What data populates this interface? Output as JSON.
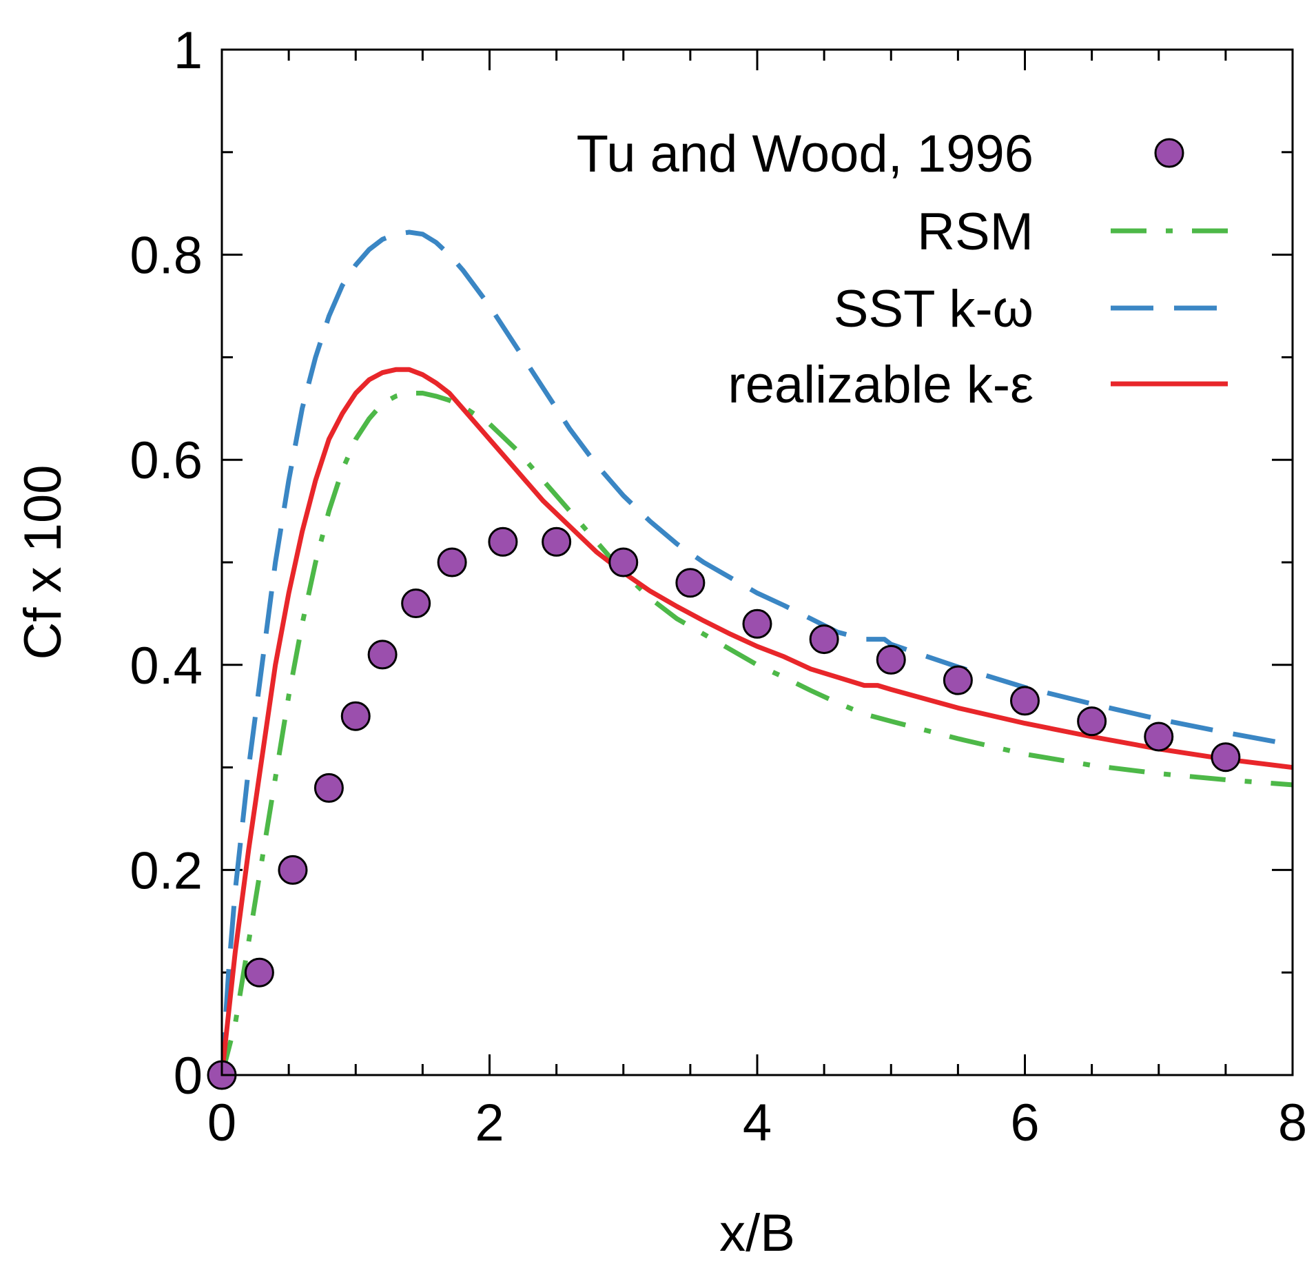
{
  "chart_data": {
    "type": "line",
    "title": "",
    "xlabel": "x/B",
    "ylabel": "Cf x 100",
    "xlim": [
      0,
      8
    ],
    "ylim": [
      0,
      1
    ],
    "xticks": [
      0,
      2,
      4,
      6,
      8
    ],
    "yticks": [
      0,
      0.2,
      0.4,
      0.6,
      0.8,
      1
    ],
    "xtick_labels": [
      "0",
      "2",
      "4",
      "6",
      "8"
    ],
    "ytick_labels": [
      "0",
      "0.2",
      "0.4",
      "0.6",
      "0.8",
      "1"
    ],
    "legend_position": "top-right",
    "series": [
      {
        "name": "Tu and Wood, 1996",
        "style": "markers",
        "color": "#9b4fad",
        "x": [
          0,
          0.28,
          0.53,
          0.8,
          1.0,
          1.2,
          1.45,
          1.72,
          2.1,
          2.5,
          3.0,
          3.5,
          4.0,
          4.5,
          5.0,
          5.5,
          6.0,
          6.5,
          7.0,
          7.5
        ],
        "y": [
          0,
          0.1,
          0.2,
          0.28,
          0.35,
          0.41,
          0.46,
          0.5,
          0.52,
          0.52,
          0.5,
          0.48,
          0.44,
          0.425,
          0.405,
          0.385,
          0.365,
          0.345,
          0.33,
          0.31
        ]
      },
      {
        "name": "RSM",
        "style": "dash-dot",
        "color": "#4db848",
        "x": [
          0,
          0.1,
          0.2,
          0.3,
          0.4,
          0.5,
          0.6,
          0.7,
          0.8,
          0.9,
          1.0,
          1.1,
          1.2,
          1.3,
          1.4,
          1.5,
          1.6,
          1.7,
          1.8,
          2.0,
          2.2,
          2.4,
          2.6,
          2.8,
          3.0,
          3.2,
          3.4,
          3.6,
          3.8,
          4.0,
          4.2,
          4.4,
          4.6,
          4.8,
          5.0,
          5.5,
          6.0,
          6.5,
          7.0,
          7.5,
          8.0
        ],
        "y": [
          0,
          0.05,
          0.13,
          0.21,
          0.29,
          0.37,
          0.44,
          0.5,
          0.55,
          0.59,
          0.62,
          0.64,
          0.655,
          0.662,
          0.665,
          0.665,
          0.662,
          0.658,
          0.652,
          0.635,
          0.61,
          0.58,
          0.55,
          0.52,
          0.49,
          0.465,
          0.445,
          0.43,
          0.415,
          0.4,
          0.388,
          0.375,
          0.363,
          0.352,
          0.345,
          0.328,
          0.313,
          0.302,
          0.294,
          0.288,
          0.283
        ]
      },
      {
        "name": "SST k-ω",
        "style": "dashed",
        "color": "#3a86c4",
        "x": [
          0,
          0.05,
          0.1,
          0.2,
          0.3,
          0.4,
          0.5,
          0.6,
          0.7,
          0.8,
          0.9,
          1.0,
          1.1,
          1.2,
          1.3,
          1.4,
          1.5,
          1.6,
          1.7,
          1.8,
          2.0,
          2.2,
          2.4,
          2.6,
          2.8,
          3.0,
          3.2,
          3.4,
          3.6,
          3.8,
          4.0,
          4.2,
          4.4,
          4.6,
          4.8,
          4.95,
          5.0,
          5.5,
          6.0,
          6.5,
          7.0,
          7.5,
          8.0
        ],
        "y": [
          0,
          0.1,
          0.18,
          0.3,
          0.4,
          0.5,
          0.58,
          0.65,
          0.7,
          0.74,
          0.77,
          0.79,
          0.805,
          0.815,
          0.82,
          0.822,
          0.82,
          0.812,
          0.8,
          0.785,
          0.75,
          0.71,
          0.67,
          0.63,
          0.595,
          0.565,
          0.54,
          0.518,
          0.5,
          0.485,
          0.47,
          0.458,
          0.445,
          0.432,
          0.425,
          0.425,
          0.42,
          0.398,
          0.378,
          0.362,
          0.347,
          0.334,
          0.322
        ]
      },
      {
        "name": "realizable k-ε",
        "style": "solid",
        "color": "#e8262a",
        "x": [
          0,
          0.05,
          0.1,
          0.2,
          0.3,
          0.4,
          0.5,
          0.6,
          0.7,
          0.8,
          0.9,
          1.0,
          1.1,
          1.2,
          1.3,
          1.4,
          1.5,
          1.6,
          1.7,
          1.8,
          2.0,
          2.2,
          2.4,
          2.6,
          2.8,
          3.0,
          3.2,
          3.4,
          3.6,
          3.8,
          4.0,
          4.2,
          4.4,
          4.6,
          4.8,
          4.9,
          5.0,
          5.5,
          6.0,
          6.5,
          7.0,
          7.5,
          8.0
        ],
        "y": [
          0,
          0.06,
          0.12,
          0.22,
          0.31,
          0.4,
          0.47,
          0.53,
          0.58,
          0.62,
          0.645,
          0.665,
          0.678,
          0.685,
          0.688,
          0.688,
          0.683,
          0.675,
          0.665,
          0.65,
          0.62,
          0.59,
          0.56,
          0.535,
          0.51,
          0.49,
          0.472,
          0.457,
          0.443,
          0.43,
          0.418,
          0.408,
          0.396,
          0.388,
          0.38,
          0.38,
          0.376,
          0.358,
          0.343,
          0.33,
          0.318,
          0.308,
          0.3
        ]
      }
    ]
  }
}
